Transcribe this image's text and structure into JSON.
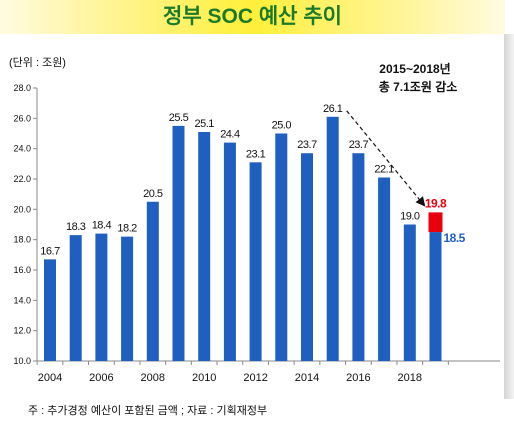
{
  "page": {
    "title": "정부 SOC 예산 추이",
    "unit_label": "(단위 : 조원)",
    "footnote": "주 : 추가경정 예산이 포함된 금액 ; 자료 : 기획재정부"
  },
  "chart_data": {
    "type": "bar",
    "categories": [
      "2004",
      "2005",
      "2006",
      "2007",
      "2008",
      "2009",
      "2010",
      "2011",
      "2012",
      "2013",
      "2014",
      "2015",
      "2016",
      "2017",
      "2018",
      "2019"
    ],
    "x_tick_labels": [
      "2004",
      "2006",
      "2008",
      "2010",
      "2012",
      "2014",
      "2016",
      "2018"
    ],
    "values": [
      16.7,
      18.3,
      18.4,
      18.2,
      20.5,
      25.5,
      25.1,
      24.4,
      23.1,
      25.0,
      23.7,
      26.1,
      23.7,
      22.1,
      19.0,
      18.5
    ],
    "value_labels": [
      "16.7",
      "18.3",
      "18.4",
      "18.2",
      "20.5",
      "25.5",
      "25.1",
      "24.4",
      "23.1",
      "25.0",
      "23.7",
      "26.1",
      "23.7",
      "22.1",
      "19.0",
      "18.5"
    ],
    "increment": {
      "category": "2019",
      "from": 18.5,
      "to": 19.8,
      "label": "19.8",
      "color": "#e8000f"
    },
    "ylim": [
      10.0,
      28.0
    ],
    "y_ticks": [
      "10.0",
      "12.0",
      "14.0",
      "16.0",
      "18.0",
      "20.0",
      "22.0",
      "24.0",
      "26.0",
      "28.0"
    ],
    "annotation": {
      "line1": "2015~2018년",
      "line2": "총 7.1조원 감소",
      "from_category": "2015",
      "to_category": "2018"
    },
    "colors": {
      "bar": "#1f5fbf",
      "axis": "#888888",
      "value_text": "#111111",
      "last_value_text": "#1f5fbf",
      "increment_text": "#e8000f"
    },
    "xlabel": "",
    "ylabel": "",
    "grid": false
  }
}
